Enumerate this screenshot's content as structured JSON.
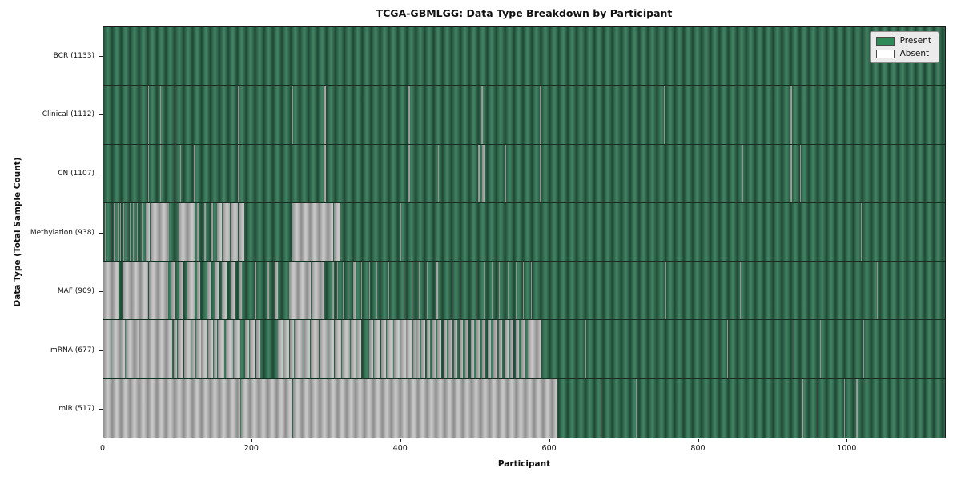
{
  "chart_data": {
    "type": "heatmap",
    "title": "TCGA-GBMLGG: Data Type Breakdown by Participant",
    "xlabel": "Participant",
    "ylabel": "Data Type (Total Sample Count)",
    "x_ticks": [
      0,
      200,
      400,
      600,
      800,
      1000
    ],
    "x_max": 1133,
    "grid": false,
    "legend_position": "upper right",
    "legend": [
      {
        "label": "Present",
        "color": "#2e8b57"
      },
      {
        "label": "Absent",
        "color": "#ffffff"
      }
    ],
    "categories": [
      "BCR (1133)",
      "Clinical (1112)",
      "CN (1107)",
      "Methylation (938)",
      "MAF (909)",
      "mRNA (677)",
      "miR (517)"
    ],
    "rows": [
      {
        "label": "BCR",
        "count": 1133,
        "display": "BCR (1133)",
        "absent": []
      },
      {
        "label": "Clinical",
        "count": 1112,
        "display": "Clinical (1112)",
        "absent": [
          [
            60,
            61
          ],
          [
            77,
            78
          ],
          [
            96,
            97
          ],
          [
            181,
            183
          ],
          [
            254,
            255
          ],
          [
            296,
            300
          ],
          [
            411,
            413
          ],
          [
            449,
            450
          ],
          [
            509,
            511
          ],
          [
            588,
            590
          ],
          [
            755,
            756
          ],
          [
            925,
            927
          ]
        ]
      },
      {
        "label": "CN",
        "count": 1107,
        "display": "CN (1107)",
        "absent": [
          [
            60,
            61
          ],
          [
            77,
            78
          ],
          [
            96,
            97
          ],
          [
            103,
            105
          ],
          [
            122,
            124
          ],
          [
            181,
            183
          ],
          [
            296,
            300
          ],
          [
            411,
            413
          ],
          [
            451,
            452
          ],
          [
            505,
            507
          ],
          [
            510,
            513
          ],
          [
            541,
            542
          ],
          [
            588,
            590
          ],
          [
            860,
            861
          ],
          [
            925,
            927
          ],
          [
            938,
            939
          ]
        ]
      },
      {
        "label": "Methylation",
        "count": 938,
        "display": "Methylation (938)",
        "absent": [
          [
            2,
            3
          ],
          [
            6,
            7
          ],
          [
            10,
            11
          ],
          [
            14,
            16
          ],
          [
            19,
            20
          ],
          [
            23,
            24
          ],
          [
            27,
            28
          ],
          [
            31,
            32
          ],
          [
            36,
            37
          ],
          [
            40,
            41
          ],
          [
            45,
            46
          ],
          [
            52,
            53
          ],
          [
            57,
            63
          ],
          [
            64,
            75
          ],
          [
            76,
            88
          ],
          [
            101,
            123
          ],
          [
            126,
            128
          ],
          [
            136,
            138
          ],
          [
            146,
            148
          ],
          [
            153,
            160
          ],
          [
            161,
            170
          ],
          [
            171,
            181
          ],
          [
            182,
            190
          ],
          [
            254,
            309
          ],
          [
            310,
            319
          ],
          [
            400,
            401
          ],
          [
            905,
            906
          ],
          [
            1020,
            1021
          ]
        ]
      },
      {
        "label": "MAF",
        "count": 909,
        "display": "MAF (909)",
        "absent": [
          [
            0,
            21
          ],
          [
            26,
            60
          ],
          [
            61,
            87
          ],
          [
            92,
            97
          ],
          [
            102,
            108
          ],
          [
            113,
            123
          ],
          [
            126,
            130
          ],
          [
            140,
            144
          ],
          [
            150,
            155
          ],
          [
            160,
            166
          ],
          [
            171,
            178
          ],
          [
            183,
            186
          ],
          [
            204,
            206
          ],
          [
            221,
            223
          ],
          [
            231,
            235
          ],
          [
            250,
            279
          ],
          [
            280,
            297
          ],
          [
            308,
            310
          ],
          [
            315,
            316
          ],
          [
            322,
            323
          ],
          [
            329,
            330
          ],
          [
            336,
            340
          ],
          [
            347,
            348
          ],
          [
            358,
            359
          ],
          [
            368,
            369
          ],
          [
            379,
            380
          ],
          [
            384,
            385
          ],
          [
            393,
            394
          ],
          [
            404,
            405
          ],
          [
            415,
            416
          ],
          [
            425,
            426
          ],
          [
            436,
            437
          ],
          [
            447,
            451
          ],
          [
            462,
            463
          ],
          [
            469,
            470
          ],
          [
            480,
            481
          ],
          [
            490,
            491
          ],
          [
            501,
            502
          ],
          [
            512,
            513
          ],
          [
            523,
            524
          ],
          [
            533,
            534
          ],
          [
            544,
            545
          ],
          [
            555,
            556
          ],
          [
            565,
            566
          ],
          [
            576,
            577
          ],
          [
            757,
            758
          ],
          [
            857,
            858
          ],
          [
            1041,
            1042
          ]
        ]
      },
      {
        "label": "mRNA",
        "count": 677,
        "display": "mRNA (677)",
        "absent": [
          [
            0,
            10
          ],
          [
            11,
            29
          ],
          [
            30,
            48
          ],
          [
            49,
            93
          ],
          [
            95,
            99
          ],
          [
            100,
            108
          ],
          [
            109,
            118
          ],
          [
            119,
            124
          ],
          [
            125,
            131
          ],
          [
            132,
            140
          ],
          [
            141,
            148
          ],
          [
            149,
            153
          ],
          [
            154,
            163
          ],
          [
            165,
            175
          ],
          [
            176,
            184
          ],
          [
            191,
            196
          ],
          [
            197,
            205
          ],
          [
            206,
            211
          ],
          [
            235,
            242
          ],
          [
            243,
            250
          ],
          [
            251,
            257
          ],
          [
            258,
            270
          ],
          [
            271,
            278
          ],
          [
            279,
            290
          ],
          [
            291,
            302
          ],
          [
            303,
            311
          ],
          [
            312,
            320
          ],
          [
            321,
            332
          ],
          [
            333,
            340
          ],
          [
            341,
            347
          ],
          [
            358,
            363
          ],
          [
            364,
            372
          ],
          [
            374,
            381
          ],
          [
            382,
            390
          ],
          [
            391,
            399
          ],
          [
            400,
            407
          ],
          [
            408,
            416
          ],
          [
            417,
            420
          ],
          [
            422,
            426
          ],
          [
            428,
            433
          ],
          [
            436,
            440
          ],
          [
            443,
            447
          ],
          [
            450,
            455
          ],
          [
            458,
            462
          ],
          [
            465,
            470
          ],
          [
            472,
            477
          ],
          [
            480,
            484
          ],
          [
            487,
            492
          ],
          [
            495,
            499
          ],
          [
            502,
            507
          ],
          [
            510,
            514
          ],
          [
            517,
            522
          ],
          [
            525,
            530
          ],
          [
            533,
            537
          ],
          [
            540,
            545
          ],
          [
            548,
            552
          ],
          [
            555,
            560
          ],
          [
            563,
            568
          ],
          [
            571,
            590
          ],
          [
            649,
            650
          ],
          [
            840,
            841
          ],
          [
            929,
            930
          ],
          [
            965,
            966
          ],
          [
            1023,
            1024
          ]
        ]
      },
      {
        "label": "miR",
        "count": 517,
        "display": "miR (517)",
        "absent": [
          [
            0,
            184
          ],
          [
            185,
            254
          ],
          [
            255,
            611
          ],
          [
            669,
            670
          ],
          [
            717,
            718
          ],
          [
            940,
            942
          ],
          [
            962,
            963
          ],
          [
            997,
            998
          ],
          [
            1013,
            1015
          ]
        ]
      }
    ]
  }
}
